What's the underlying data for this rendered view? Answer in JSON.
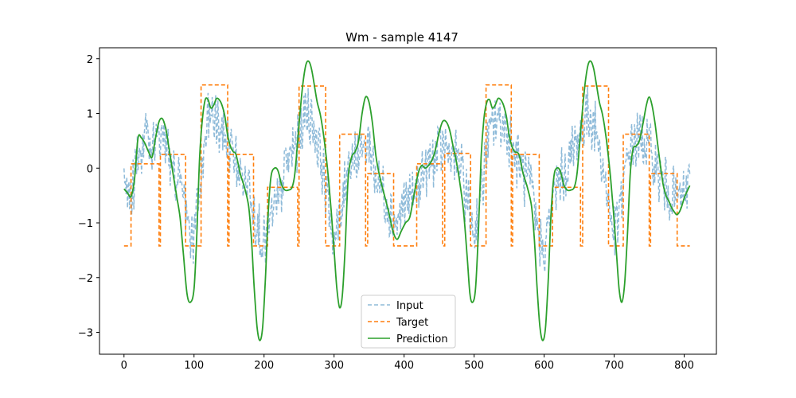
{
  "chart_data": {
    "type": "line",
    "title": "Wm - sample 4147",
    "xlabel": "",
    "ylabel": "",
    "xlim": [
      -35,
      846
    ],
    "ylim": [
      -3.4,
      2.2
    ],
    "x_ticks": [
      0,
      100,
      200,
      300,
      400,
      500,
      600,
      700,
      800
    ],
    "y_ticks": [
      2,
      1,
      0,
      -1,
      -2,
      -3
    ],
    "x_tick_labels": [
      "0",
      "100",
      "200",
      "300",
      "400",
      "500",
      "600",
      "700",
      "800"
    ],
    "y_tick_labels": [
      "2",
      "1",
      "0",
      "−1",
      "−2",
      "−3"
    ],
    "grid": false,
    "legend_position": "lower center",
    "colors": {
      "input": "#1f77b4",
      "target": "#ff7f0e",
      "prediction": "#2ca02c"
    },
    "series": [
      {
        "name": "Input",
        "style": "dashed",
        "noise_amplitude": 0.45,
        "baseline": [
          [
            0,
            -0.45
          ],
          [
            10,
            -0.5
          ],
          [
            20,
            0.3
          ],
          [
            30,
            0.6
          ],
          [
            40,
            0.3
          ],
          [
            50,
            0.5
          ],
          [
            60,
            0.5
          ],
          [
            70,
            -0.1
          ],
          [
            80,
            -0.3
          ],
          [
            90,
            -0.9
          ],
          [
            100,
            -1.3
          ],
          [
            110,
            -0.2
          ],
          [
            120,
            0.9
          ],
          [
            130,
            0.9
          ],
          [
            140,
            0.6
          ],
          [
            150,
            0.5
          ],
          [
            160,
            0.1
          ],
          [
            170,
            -0.2
          ],
          [
            180,
            -0.3
          ],
          [
            190,
            -1.0
          ],
          [
            200,
            -1.4
          ],
          [
            210,
            -0.9
          ],
          [
            220,
            -0.7
          ],
          [
            230,
            0.0
          ],
          [
            240,
            0.3
          ],
          [
            250,
            0.5
          ],
          [
            260,
            1.1
          ],
          [
            270,
            0.8
          ],
          [
            280,
            0.3
          ],
          [
            290,
            -0.6
          ],
          [
            300,
            -1.3
          ],
          [
            310,
            -0.9
          ],
          [
            320,
            0.2
          ],
          [
            330,
            0.2
          ],
          [
            340,
            0.3
          ],
          [
            350,
            0.5
          ],
          [
            360,
            -0.2
          ],
          [
            370,
            -0.4
          ],
          [
            380,
            -0.8
          ],
          [
            390,
            -1.0
          ],
          [
            400,
            -0.6
          ],
          [
            410,
            -0.6
          ],
          [
            420,
            -0.3
          ],
          [
            430,
            0.0
          ],
          [
            440,
            0.1
          ],
          [
            450,
            0.3
          ],
          [
            460,
            0.4
          ],
          [
            470,
            0.2
          ],
          [
            480,
            0.1
          ],
          [
            490,
            -0.6
          ],
          [
            500,
            -1.2
          ],
          [
            510,
            -0.5
          ],
          [
            520,
            0.5
          ],
          [
            530,
            0.9
          ],
          [
            540,
            0.8
          ],
          [
            550,
            0.6
          ],
          [
            560,
            0.2
          ],
          [
            570,
            -0.1
          ],
          [
            580,
            -0.3
          ],
          [
            590,
            -1.1
          ],
          [
            600,
            -1.5
          ],
          [
            610,
            -0.8
          ],
          [
            620,
            -0.2
          ],
          [
            630,
            -0.1
          ],
          [
            640,
            0.3
          ],
          [
            650,
            0.6
          ],
          [
            660,
            1.0
          ],
          [
            670,
            0.9
          ],
          [
            680,
            0.3
          ],
          [
            690,
            -0.5
          ],
          [
            700,
            -1.2
          ],
          [
            710,
            -0.7
          ],
          [
            720,
            0.3
          ],
          [
            730,
            0.5
          ],
          [
            740,
            0.5
          ],
          [
            750,
            0.4
          ],
          [
            760,
            0.0
          ],
          [
            770,
            -0.3
          ],
          [
            780,
            -0.4
          ],
          [
            790,
            -0.6
          ],
          [
            800,
            -0.5
          ],
          [
            808,
            -0.3
          ]
        ]
      },
      {
        "name": "Target",
        "style": "dashed-step",
        "segments": [
          [
            0,
            10,
            -1.42
          ],
          [
            10,
            50,
            0.08
          ],
          [
            50,
            52,
            -1.42
          ],
          [
            52,
            88,
            0.25
          ],
          [
            88,
            110,
            -1.42
          ],
          [
            110,
            148,
            1.52
          ],
          [
            148,
            150,
            -1.42
          ],
          [
            150,
            185,
            0.25
          ],
          [
            185,
            205,
            -1.42
          ],
          [
            205,
            248,
            -0.35
          ],
          [
            248,
            250,
            -1.42
          ],
          [
            250,
            288,
            1.5
          ],
          [
            288,
            308,
            -1.42
          ],
          [
            308,
            345,
            0.62
          ],
          [
            345,
            348,
            -1.42
          ],
          [
            348,
            385,
            -0.1
          ],
          [
            385,
            418,
            -1.42
          ],
          [
            418,
            455,
            0.08
          ],
          [
            455,
            458,
            -1.42
          ],
          [
            458,
            495,
            0.27
          ],
          [
            495,
            517,
            -1.42
          ],
          [
            517,
            553,
            1.52
          ],
          [
            553,
            555,
            -1.42
          ],
          [
            555,
            593,
            0.25
          ],
          [
            593,
            612,
            -1.42
          ],
          [
            612,
            652,
            -0.35
          ],
          [
            652,
            655,
            -1.42
          ],
          [
            655,
            692,
            1.5
          ],
          [
            692,
            713,
            -1.42
          ],
          [
            713,
            750,
            0.62
          ],
          [
            750,
            752,
            -1.42
          ],
          [
            752,
            790,
            -0.1
          ],
          [
            790,
            808,
            -1.42
          ]
        ]
      },
      {
        "name": "Prediction",
        "style": "solid",
        "points": [
          [
            0,
            -0.38
          ],
          [
            5,
            -0.45
          ],
          [
            10,
            -0.52
          ],
          [
            15,
            -0.2
          ],
          [
            20,
            0.55
          ],
          [
            25,
            0.55
          ],
          [
            30,
            0.45
          ],
          [
            35,
            0.3
          ],
          [
            40,
            0.2
          ],
          [
            45,
            0.55
          ],
          [
            50,
            0.85
          ],
          [
            55,
            0.9
          ],
          [
            60,
            0.7
          ],
          [
            65,
            0.3
          ],
          [
            70,
            -0.1
          ],
          [
            75,
            -0.5
          ],
          [
            80,
            -0.9
          ],
          [
            85,
            -1.6
          ],
          [
            90,
            -2.3
          ],
          [
            95,
            -2.45
          ],
          [
            100,
            -2.2
          ],
          [
            104,
            -1.2
          ],
          [
            108,
            0.2
          ],
          [
            112,
            0.9
          ],
          [
            116,
            1.25
          ],
          [
            120,
            1.25
          ],
          [
            124,
            1.1
          ],
          [
            128,
            1.15
          ],
          [
            132,
            1.27
          ],
          [
            136,
            1.25
          ],
          [
            140,
            1.15
          ],
          [
            144,
            0.95
          ],
          [
            148,
            0.6
          ],
          [
            152,
            0.4
          ],
          [
            156,
            0.3
          ],
          [
            160,
            0.25
          ],
          [
            166,
            -0.1
          ],
          [
            172,
            -0.35
          ],
          [
            178,
            -0.7
          ],
          [
            182,
            -1.3
          ],
          [
            186,
            -2.2
          ],
          [
            190,
            -2.9
          ],
          [
            194,
            -3.15
          ],
          [
            198,
            -2.9
          ],
          [
            202,
            -2.0
          ],
          [
            206,
            -0.8
          ],
          [
            210,
            -0.15
          ],
          [
            215,
            0.0
          ],
          [
            220,
            -0.05
          ],
          [
            225,
            -0.3
          ],
          [
            230,
            -0.4
          ],
          [
            235,
            -0.4
          ],
          [
            240,
            -0.35
          ],
          [
            244,
            -0.1
          ],
          [
            248,
            0.5
          ],
          [
            252,
            1.1
          ],
          [
            256,
            1.6
          ],
          [
            260,
            1.9
          ],
          [
            264,
            1.95
          ],
          [
            268,
            1.8
          ],
          [
            272,
            1.5
          ],
          [
            276,
            1.2
          ],
          [
            280,
            1.0
          ],
          [
            284,
            0.7
          ],
          [
            288,
            0.3
          ],
          [
            292,
            -0.2
          ],
          [
            296,
            -0.8
          ],
          [
            300,
            -1.5
          ],
          [
            304,
            -2.2
          ],
          [
            308,
            -2.55
          ],
          [
            312,
            -2.3
          ],
          [
            316,
            -1.4
          ],
          [
            320,
            -0.2
          ],
          [
            325,
            0.2
          ],
          [
            330,
            0.3
          ],
          [
            335,
            0.5
          ],
          [
            340,
            1.0
          ],
          [
            345,
            1.3
          ],
          [
            350,
            1.2
          ],
          [
            355,
            0.8
          ],
          [
            360,
            0.2
          ],
          [
            366,
            -0.2
          ],
          [
            372,
            -0.5
          ],
          [
            378,
            -0.8
          ],
          [
            384,
            -1.15
          ],
          [
            390,
            -1.3
          ],
          [
            396,
            -1.15
          ],
          [
            402,
            -1.0
          ],
          [
            408,
            -0.9
          ],
          [
            414,
            -0.5
          ],
          [
            420,
            -0.1
          ],
          [
            425,
            0.05
          ],
          [
            430,
            0.0
          ],
          [
            435,
            0.05
          ],
          [
            440,
            0.15
          ],
          [
            445,
            0.35
          ],
          [
            450,
            0.65
          ],
          [
            455,
            0.85
          ],
          [
            460,
            0.85
          ],
          [
            465,
            0.7
          ],
          [
            470,
            0.4
          ],
          [
            475,
            0.1
          ],
          [
            480,
            -0.3
          ],
          [
            485,
            -0.8
          ],
          [
            490,
            -1.6
          ],
          [
            494,
            -2.3
          ],
          [
            498,
            -2.45
          ],
          [
            502,
            -2.2
          ],
          [
            506,
            -1.2
          ],
          [
            510,
            0.2
          ],
          [
            514,
            0.9
          ],
          [
            518,
            1.2
          ],
          [
            522,
            1.25
          ],
          [
            526,
            1.1
          ],
          [
            530,
            1.15
          ],
          [
            534,
            1.27
          ],
          [
            538,
            1.25
          ],
          [
            542,
            1.15
          ],
          [
            546,
            0.95
          ],
          [
            550,
            0.6
          ],
          [
            554,
            0.4
          ],
          [
            558,
            0.3
          ],
          [
            564,
            0.25
          ],
          [
            570,
            -0.1
          ],
          [
            576,
            -0.35
          ],
          [
            582,
            -0.7
          ],
          [
            586,
            -1.3
          ],
          [
            590,
            -2.2
          ],
          [
            594,
            -2.9
          ],
          [
            598,
            -3.15
          ],
          [
            602,
            -2.9
          ],
          [
            606,
            -2.0
          ],
          [
            610,
            -0.8
          ],
          [
            614,
            -0.15
          ],
          [
            618,
            0.0
          ],
          [
            623,
            -0.05
          ],
          [
            628,
            -0.3
          ],
          [
            633,
            -0.4
          ],
          [
            638,
            -0.4
          ],
          [
            643,
            -0.35
          ],
          [
            647,
            -0.1
          ],
          [
            651,
            0.5
          ],
          [
            655,
            1.1
          ],
          [
            659,
            1.6
          ],
          [
            663,
            1.9
          ],
          [
            667,
            1.95
          ],
          [
            671,
            1.8
          ],
          [
            675,
            1.5
          ],
          [
            679,
            1.2
          ],
          [
            683,
            1.0
          ],
          [
            687,
            0.7
          ],
          [
            691,
            0.3
          ],
          [
            695,
            -0.2
          ],
          [
            699,
            -0.8
          ],
          [
            703,
            -1.5
          ],
          [
            707,
            -2.2
          ],
          [
            711,
            -2.45
          ],
          [
            715,
            -2.1
          ],
          [
            719,
            -1.2
          ],
          [
            723,
            -0.1
          ],
          [
            727,
            0.35
          ],
          [
            731,
            0.4
          ],
          [
            736,
            0.5
          ],
          [
            741,
            0.8
          ],
          [
            746,
            1.15
          ],
          [
            750,
            1.3
          ],
          [
            754,
            1.15
          ],
          [
            758,
            0.85
          ],
          [
            762,
            0.45
          ],
          [
            766,
            0.05
          ],
          [
            770,
            -0.3
          ],
          [
            774,
            -0.5
          ],
          [
            778,
            -0.6
          ],
          [
            782,
            -0.72
          ],
          [
            786,
            -0.8
          ],
          [
            790,
            -0.85
          ],
          [
            795,
            -0.75
          ],
          [
            800,
            -0.55
          ],
          [
            805,
            -0.4
          ],
          [
            808,
            -0.32
          ]
        ]
      }
    ]
  }
}
